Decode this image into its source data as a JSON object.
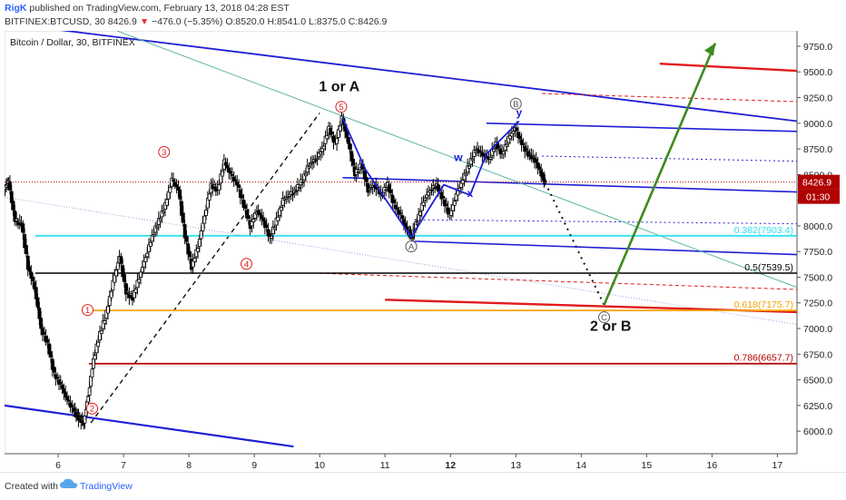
{
  "header": {
    "author": "RigK",
    "published_text": "published on TradingView.com, February 13, 2018 04:28 EST",
    "symbol": "BITFINEX:BTCUSD, 30",
    "open": "O:8520.0",
    "high": "H:8541.0",
    "low": "L:8375.0",
    "close": "C:8426.9",
    "last": "8426.9",
    "change": "−476.0 (−5.35%)"
  },
  "footer": {
    "created_with": "Created with",
    "brand": "TradingView"
  },
  "colors": {
    "blue": "#1f1fd6",
    "red": "#e01b1b",
    "green": "#3d8a1e",
    "teal": "#5ab5a0",
    "cyan": "#33e0ee",
    "orange": "#f5a300",
    "darkred": "#b30000",
    "candle_up": "#ffffff",
    "candle_down": "#000000",
    "price_badge": "#b00000"
  },
  "chart_data": {
    "type": "candlestick",
    "title": "Bitcoin / Dollar, 30, BITFINEX",
    "x_ticks": [
      "6",
      "7",
      "8",
      "9",
      "10",
      "11",
      "12",
      "13",
      "14",
      "15",
      "16",
      "17"
    ],
    "x_tick_values": [
      6,
      7,
      8,
      9,
      10,
      11,
      12,
      13,
      14,
      15,
      16,
      17
    ],
    "x_bold_tick": "12",
    "xlim": [
      5.18,
      17.3
    ],
    "y_ticks": [
      "6000.0",
      "6250.0",
      "6500.0",
      "6750.0",
      "7000.0",
      "7250.0",
      "7500.0",
      "7750.0",
      "8000.0",
      "8250.0",
      "8500.0",
      "8750.0",
      "9000.0",
      "9250.0",
      "9500.0",
      "9750.0"
    ],
    "ylim": [
      5780,
      9900
    ],
    "last_price": {
      "value": 8426.9,
      "label": "8426.9",
      "countdown": "01:30"
    },
    "price_path": [
      [
        5.18,
        8360
      ],
      [
        5.25,
        8430
      ],
      [
        5.35,
        8050
      ],
      [
        5.45,
        8020
      ],
      [
        5.55,
        7600
      ],
      [
        5.65,
        7400
      ],
      [
        5.75,
        7000
      ],
      [
        5.85,
        6850
      ],
      [
        5.95,
        6550
      ],
      [
        6.05,
        6450
      ],
      [
        6.15,
        6300
      ],
      [
        6.25,
        6200
      ],
      [
        6.32,
        6130
      ],
      [
        6.4,
        6080
      ],
      [
        6.47,
        6350
      ],
      [
        6.55,
        6700
      ],
      [
        6.65,
        6950
      ],
      [
        6.75,
        7150
      ],
      [
        6.85,
        7450
      ],
      [
        6.95,
        7700
      ],
      [
        7.05,
        7350
      ],
      [
        7.15,
        7300
      ],
      [
        7.25,
        7500
      ],
      [
        7.35,
        7700
      ],
      [
        7.45,
        7900
      ],
      [
        7.55,
        8050
      ],
      [
        7.65,
        8200
      ],
      [
        7.75,
        8450
      ],
      [
        7.85,
        8350
      ],
      [
        7.95,
        7900
      ],
      [
        8.05,
        7600
      ],
      [
        8.15,
        7800
      ],
      [
        8.25,
        8100
      ],
      [
        8.35,
        8400
      ],
      [
        8.45,
        8350
      ],
      [
        8.55,
        8620
      ],
      [
        8.65,
        8500
      ],
      [
        8.75,
        8400
      ],
      [
        8.85,
        8200
      ],
      [
        8.95,
        8000
      ],
      [
        9.05,
        8150
      ],
      [
        9.15,
        8050
      ],
      [
        9.25,
        7880
      ],
      [
        9.35,
        8050
      ],
      [
        9.45,
        8250
      ],
      [
        9.55,
        8300
      ],
      [
        9.65,
        8350
      ],
      [
        9.75,
        8450
      ],
      [
        9.85,
        8600
      ],
      [
        9.95,
        8650
      ],
      [
        10.05,
        8750
      ],
      [
        10.15,
        8950
      ],
      [
        10.25,
        8800
      ],
      [
        10.35,
        9050
      ],
      [
        10.45,
        8800
      ],
      [
        10.55,
        8500
      ],
      [
        10.65,
        8600
      ],
      [
        10.75,
        8350
      ],
      [
        10.85,
        8400
      ],
      [
        10.95,
        8300
      ],
      [
        11.05,
        8400
      ],
      [
        11.15,
        8200
      ],
      [
        11.25,
        8100
      ],
      [
        11.35,
        7950
      ],
      [
        11.42,
        7900
      ],
      [
        11.5,
        8050
      ],
      [
        11.6,
        8250
      ],
      [
        11.7,
        8350
      ],
      [
        11.8,
        8400
      ],
      [
        11.9,
        8250
      ],
      [
        12.0,
        8100
      ],
      [
        12.1,
        8300
      ],
      [
        12.2,
        8450
      ],
      [
        12.3,
        8600
      ],
      [
        12.4,
        8750
      ],
      [
        12.5,
        8700
      ],
      [
        12.6,
        8650
      ],
      [
        12.7,
        8800
      ],
      [
        12.8,
        8700
      ],
      [
        12.9,
        8850
      ],
      [
        13.0,
        8950
      ],
      [
        13.1,
        8800
      ],
      [
        13.2,
        8700
      ],
      [
        13.3,
        8650
      ],
      [
        13.4,
        8500
      ],
      [
        13.45,
        8426.9
      ]
    ],
    "wave_labels": [
      {
        "text": "1",
        "x": 6.45,
        "y": 7180,
        "style": "circle-red"
      },
      {
        "text": "2",
        "x": 6.52,
        "y": 6220,
        "style": "circle-red"
      },
      {
        "text": "3",
        "x": 7.62,
        "y": 8720,
        "style": "circle-red"
      },
      {
        "text": "4",
        "x": 8.88,
        "y": 7630,
        "style": "circle-red"
      },
      {
        "text": "5",
        "x": 10.33,
        "y": 9160,
        "style": "circle-red"
      },
      {
        "text": "A",
        "x": 11.4,
        "y": 7800,
        "style": "circle-grey"
      },
      {
        "text": "B",
        "x": 13.0,
        "y": 9190,
        "style": "circle-grey"
      },
      {
        "text": "C",
        "x": 14.35,
        "y": 7110,
        "style": "circle-grey"
      },
      {
        "text": "w",
        "x": 12.12,
        "y": 8630,
        "style": "blue"
      },
      {
        "text": "x",
        "x": 12.3,
        "y": 8280,
        "style": "blue"
      },
      {
        "text": "y",
        "x": 13.05,
        "y": 9070,
        "style": "blue"
      },
      {
        "text": "1 or A",
        "x": 10.3,
        "y": 9310,
        "style": "big"
      },
      {
        "text": "2 or B",
        "x": 14.45,
        "y": 6980,
        "style": "big"
      }
    ],
    "fib_levels": [
      {
        "label": "0.382(7903.4)",
        "value": 7903.4,
        "color": "#33e0ee"
      },
      {
        "label": "0.5(7539.5)",
        "value": 7539.5,
        "color": "#000000"
      },
      {
        "label": "0.618(7175.7)",
        "value": 7175.7,
        "color": "#f5a300"
      },
      {
        "label": "0.786(6657.7)",
        "value": 6657.7,
        "color": "#b30000"
      }
    ],
    "grid": false
  }
}
